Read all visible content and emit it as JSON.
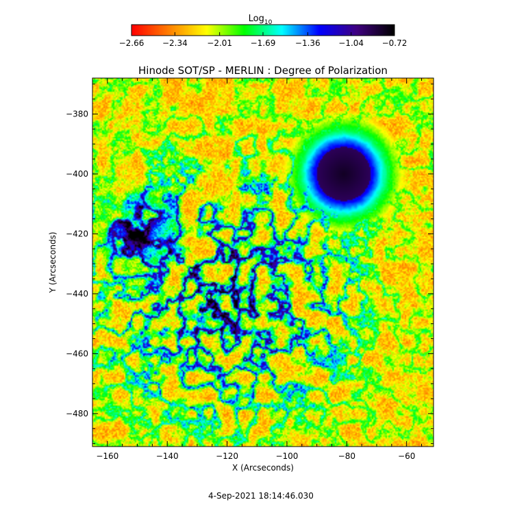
{
  "chart_data": {
    "type": "heatmap",
    "title": "Hinode SOT/SP - MERLIN : Degree of Polarization",
    "xlabel": "X (Arcseconds)",
    "ylabel": "Y (Arcseconds)",
    "xlim": [
      -165,
      -51
    ],
    "ylim": [
      -491,
      -368
    ],
    "xticks": [
      -160,
      -140,
      -120,
      -100,
      -80,
      -60
    ],
    "yticks": [
      -380,
      -400,
      -420,
      -440,
      -460,
      -480
    ],
    "colorbar": {
      "label_base": "Log",
      "label_sub": "10",
      "range": [
        -2.66,
        -0.72
      ],
      "ticks": [
        -2.66,
        -2.34,
        -2.01,
        -1.69,
        -1.36,
        -1.04,
        -0.72
      ],
      "colormap": [
        "#ff0000",
        "#ff8000",
        "#ffff00",
        "#00ff00",
        "#00ffff",
        "#0000ff",
        "#400080",
        "#000000"
      ]
    },
    "features": [
      {
        "name": "sunspot umbra",
        "x": -81,
        "y": -400,
        "radius": 9,
        "value": -0.75
      },
      {
        "name": "sunspot penumbra",
        "x": -81,
        "y": -400,
        "radius": 15,
        "value": -1.3
      },
      {
        "name": "plage",
        "x": -150,
        "y": -420,
        "radius": 10,
        "value": -1.2
      },
      {
        "name": "network",
        "x": -110,
        "y": -450,
        "radius": 5,
        "value": -1.6
      }
    ],
    "timestamp": "4-Sep-2021 18:14:46.030"
  }
}
